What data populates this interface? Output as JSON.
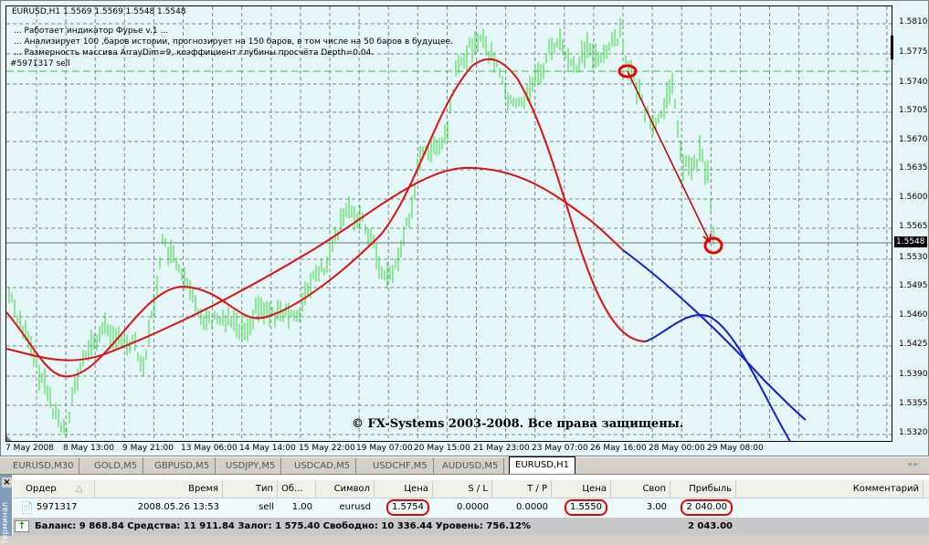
{
  "chart": {
    "title": "EURUSD,H1  1.5569 1.5569 1.5548 1.5548",
    "info_lines": [
      "... Работает индикатор Фурье v.1 ...",
      "... Анализирует 100 ,баров истории, прогнозирует на 150 баров, в том числе на 50 баров в будущее.",
      "... Размерность массива ArrayDim=9, коэффициент глубины просчёта Depth=0.04.",
      "#5971317 sell"
    ],
    "price_axis": [
      "1.5810",
      "1.5775",
      "1.5740",
      "1.5705",
      "1.5670",
      "1.5635",
      "1.5600",
      "1.5565",
      "1.5530",
      "1.5495",
      "1.5460",
      "1.5425",
      "1.5390",
      "1.5355",
      "1.5320"
    ],
    "bid": "1.5548",
    "time_axis": [
      "7 May 2008",
      "8 May 13:00",
      "9 May 21:00",
      "13 May 06:00",
      "14 May 14:00",
      "15 May 22:00",
      "19 May 07:00",
      "20 May 15:00",
      "21 May 23:00",
      "23 May 07:00",
      "26 May 16:00",
      "28 May 00:00",
      "29 May 08:00"
    ],
    "copyright": "© FX-Systems 2003-2008. Все права защищены.",
    "colors": {
      "background": "#e4f6f8",
      "bars": "#33dd33",
      "fourier": "#e01010",
      "forecast": "#1020d0",
      "annotation": "#ee0000"
    }
  },
  "tabs": [
    {
      "label": "EURUSD,M30"
    },
    {
      "label": "GOLD,M5"
    },
    {
      "label": "GBPUSD,M5"
    },
    {
      "label": "USDJPY,M5"
    },
    {
      "label": "USDCAD,M5"
    },
    {
      "label": "USDCHF,M5"
    },
    {
      "label": "AUDUSD,M5"
    },
    {
      "label": "EURUSD,H1",
      "active": true
    }
  ],
  "terminal": {
    "label": "Терминал",
    "columns": [
      "Ордер",
      "Время",
      "Тип",
      "Об...",
      "Символ",
      "Цена",
      "S / L",
      "T / P",
      "Цена",
      "Своп",
      "Прибыль",
      "Комментарий"
    ],
    "order": {
      "id": "5971317",
      "time": "2008.05.26 13:53",
      "type": "sell",
      "volume": "1.00",
      "symbol": "eurusd",
      "open_price": "1.5754",
      "sl": "0.0000",
      "tp": "0.0000",
      "price": "1.5550",
      "swap": "3.00",
      "profit": "2 040.00",
      "comment": ""
    },
    "summary": "Баланс: 9 868.84  Средства: 11 911.84  Залог: 1 575.40  Свободно: 10 336.44  Уровень: 756.12%",
    "total_profit": "2 043.00"
  }
}
